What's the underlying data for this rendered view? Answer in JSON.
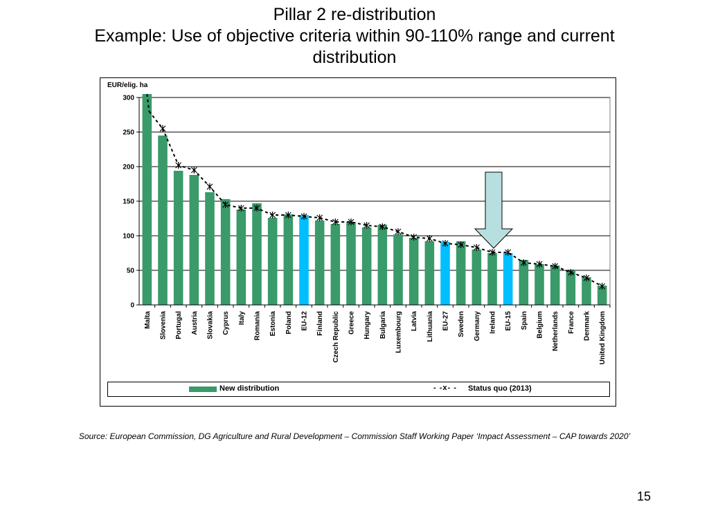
{
  "slide": {
    "title_line1": "Pillar 2 re-distribution",
    "title_line2": "Example: Use of objective criteria within 90-110% range and current",
    "title_line3": "distribution",
    "source": "Source: European Commission, DG Agriculture and Rural Development – Commission Staff Working Paper ‘Impact Assessment – CAP towards 2020’",
    "page_number": "15"
  },
  "colors": {
    "bar": "#3a9a6a",
    "highlight_bar": "#00bfff",
    "arrow_fill": "#b8dfe0",
    "gridline": "#000000"
  },
  "chart_data": {
    "type": "bar",
    "ylabel": "EUR/elig. ha",
    "ylim": [
      0,
      300
    ],
    "yticks": [
      0,
      50,
      100,
      150,
      200,
      250,
      300
    ],
    "grid": true,
    "legend_position": "bottom",
    "categories": [
      "Malta",
      "Slovenia",
      "Portugal",
      "Austria",
      "Slovakia",
      "Cyprus",
      "Italy",
      "Romania",
      "Estonia",
      "Poland",
      "EU-12",
      "Finland",
      "Czech Republic",
      "Greece",
      "Hungary",
      "Bulgaria",
      "Luxembourg",
      "Latvia",
      "Lithuania",
      "EU-27",
      "Sweden",
      "Germany",
      "Ireland",
      "EU-15",
      "Spain",
      "Belgium",
      "Netherlands",
      "France",
      "Denmark",
      "United Kingdom"
    ],
    "highlighted_categories": [
      "EU-12",
      "EU-27",
      "EU-15"
    ],
    "series": [
      {
        "name": "New distribution",
        "type": "bar",
        "values": [
          305,
          245,
          194,
          188,
          163,
          153,
          138,
          147,
          126,
          131,
          130,
          122,
          117,
          120,
          112,
          116,
          102,
          97,
          92,
          91,
          92,
          80,
          75,
          75,
          65,
          59,
          57,
          50,
          40,
          28
        ]
      },
      {
        "name": "Status quo (2013)",
        "type": "line",
        "style": "dashed-x",
        "values": [
          null,
          255,
          202,
          195,
          171,
          145,
          140,
          140,
          130,
          130,
          128,
          126,
          120,
          120,
          115,
          113,
          106,
          98,
          96,
          89,
          87,
          83,
          76,
          76,
          61,
          59,
          56,
          47,
          39,
          27
        ]
      }
    ],
    "annotations": [
      {
        "type": "arrow",
        "direction": "down",
        "target_category": "Ireland"
      }
    ]
  }
}
